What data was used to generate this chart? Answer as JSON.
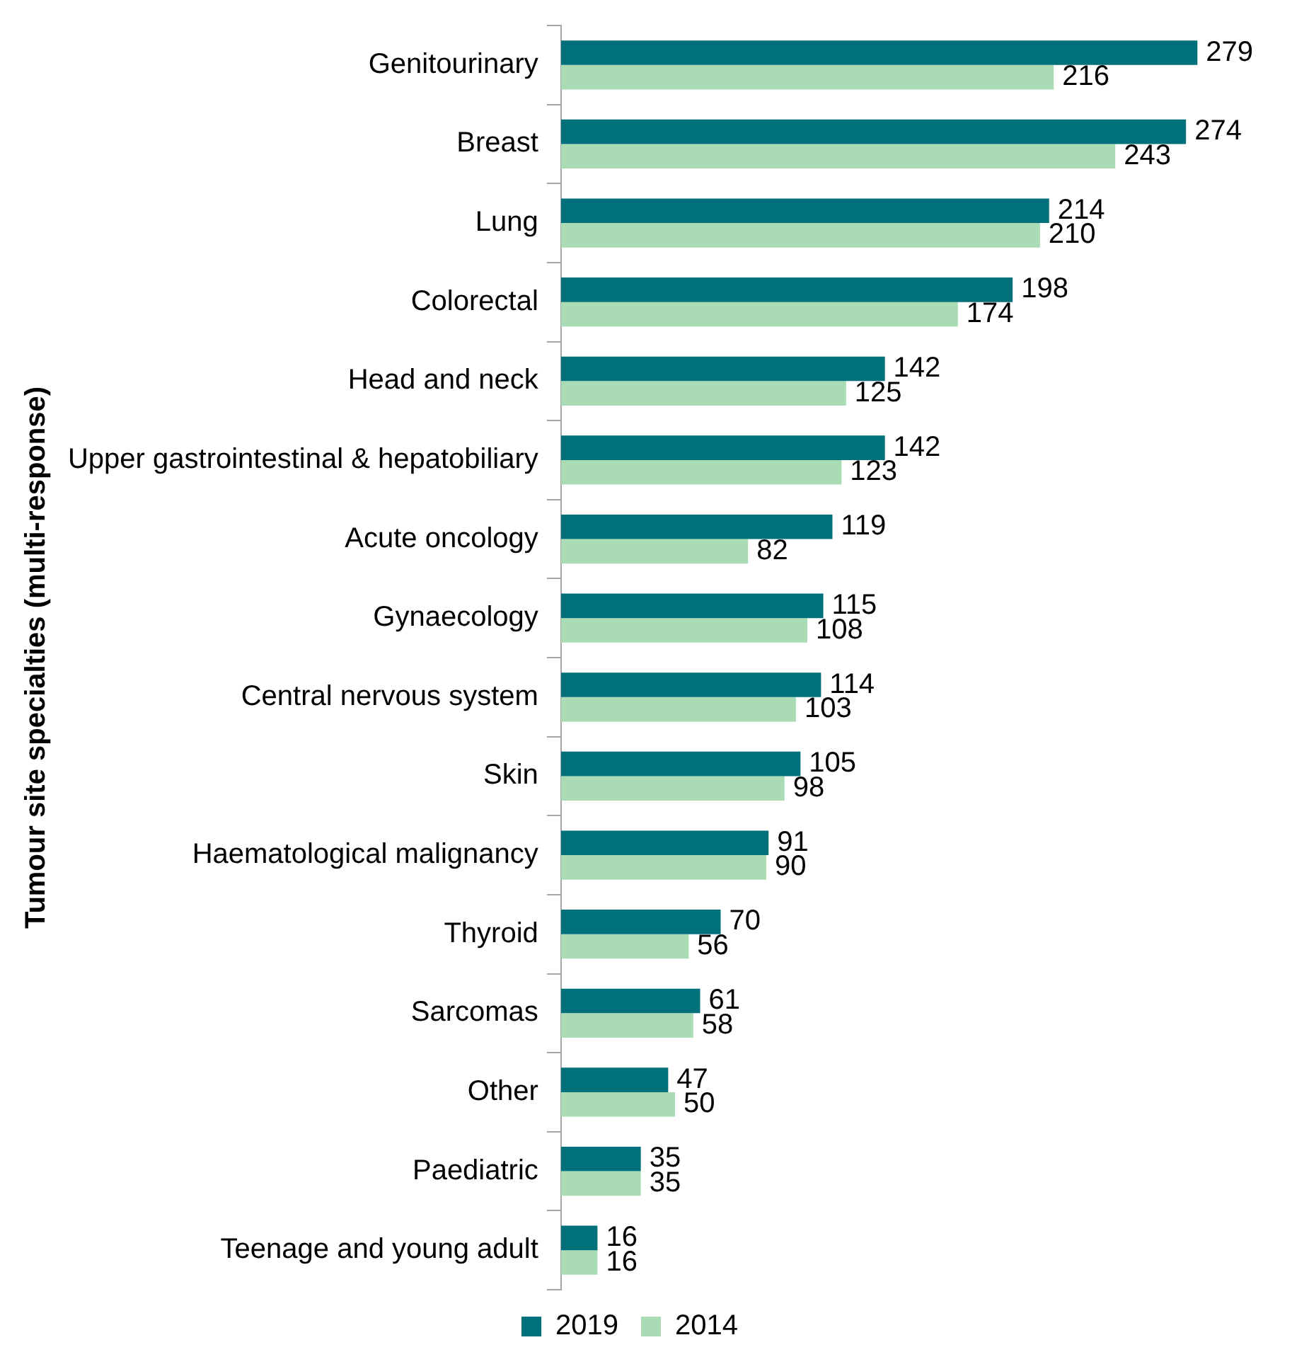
{
  "chart_data": {
    "type": "bar",
    "orientation": "horizontal",
    "ylabel": "Tumour site specialties (multi-response)",
    "categories": [
      "Genitourinary",
      "Breast",
      "Lung",
      "Colorectal",
      "Head and neck",
      "Upper gastrointestinal & hepatobiliary",
      "Acute oncology",
      "Gynaecology",
      "Central nervous system",
      "Skin",
      "Haematological malignancy",
      "Thyroid",
      "Sarcomas",
      "Other",
      "Paediatric",
      "Teenage and young adult"
    ],
    "series": [
      {
        "name": "2019",
        "color": "#00707a",
        "values": [
          279,
          274,
          214,
          198,
          142,
          142,
          119,
          115,
          114,
          105,
          91,
          70,
          61,
          47,
          35,
          16
        ]
      },
      {
        "name": "2014",
        "color": "#a9dcb5",
        "values": [
          216,
          243,
          210,
          174,
          125,
          123,
          82,
          108,
          103,
          98,
          90,
          56,
          58,
          50,
          35,
          16
        ]
      }
    ],
    "tick_labels": "y",
    "data_labels": true,
    "legend": "bottom",
    "grid": false
  }
}
